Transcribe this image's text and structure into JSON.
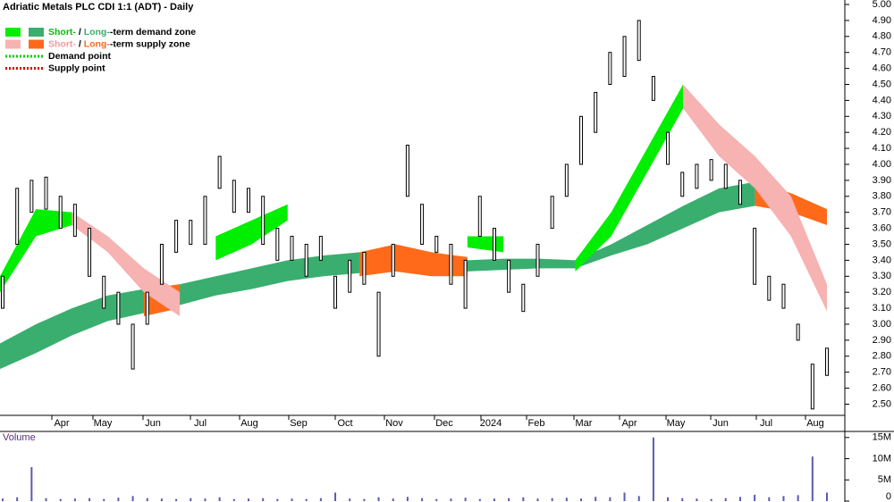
{
  "chart_data": [
    {
      "type": "hilo",
      "title": "Adriatic Metals PLC CDI 1:1 (ADT) - Daily",
      "color": "#000000",
      "ylim": [
        2.43,
        5.0
      ],
      "yticks": [
        {
          "value": 2.5,
          "label": "2.50"
        },
        {
          "value": 2.6,
          "label": "2.60"
        },
        {
          "value": 2.7,
          "label": "2.70"
        },
        {
          "value": 2.8,
          "label": "2.80"
        },
        {
          "value": 2.9,
          "label": "2.90"
        },
        {
          "value": 3.0,
          "label": "3.00"
        },
        {
          "value": 3.1,
          "label": "3.10"
        },
        {
          "value": 3.2,
          "label": "3.20"
        },
        {
          "value": 3.3,
          "label": "3.30"
        },
        {
          "value": 3.4,
          "label": "3.40"
        },
        {
          "value": 3.5,
          "label": "3.50"
        },
        {
          "value": 3.6,
          "label": "3.60"
        },
        {
          "value": 3.7,
          "label": "3.70"
        },
        {
          "value": 3.8,
          "label": "3.80"
        },
        {
          "value": 3.9,
          "label": "3.90"
        },
        {
          "value": 4.0,
          "label": "4.00"
        },
        {
          "value": 4.1,
          "label": "4.10"
        },
        {
          "value": 4.2,
          "label": "4.20"
        },
        {
          "value": 4.3,
          "label": "4.30"
        },
        {
          "value": 4.4,
          "label": "4.40"
        },
        {
          "value": 4.5,
          "label": "4.50"
        },
        {
          "value": 4.6,
          "label": "4.60"
        },
        {
          "value": 4.7,
          "label": "4.70"
        },
        {
          "value": 4.8,
          "label": "4.80"
        },
        {
          "value": 4.9,
          "label": "4.90"
        },
        {
          "value": 5.0,
          "label": "5.00"
        }
      ],
      "x_labels": [
        "Apr",
        "May",
        "Jun",
        "Jul",
        "Aug",
        "Sep",
        "Oct",
        "Nov",
        "Dec",
        "2024",
        "Feb",
        "Mar",
        "Apr",
        "May",
        "Jun",
        "Jul",
        "Aug"
      ],
      "low": [
        3.1,
        3.5,
        3.7,
        3.72,
        3.6,
        3.55,
        3.3,
        3.1,
        3.0,
        2.72,
        3.0,
        3.25,
        3.45,
        3.5,
        3.5,
        3.85,
        3.7,
        3.7,
        3.5,
        3.4,
        3.4,
        3.3,
        3.4,
        3.1,
        3.2,
        3.25,
        2.8,
        3.3,
        3.8,
        3.5,
        3.45,
        3.25,
        3.1,
        3.55,
        3.4,
        3.2,
        3.08,
        3.3,
        3.6,
        3.8,
        4.0,
        4.2,
        4.5,
        4.55,
        4.65,
        4.4,
        4.0,
        3.8,
        3.85,
        3.9,
        3.85,
        3.75,
        3.25,
        3.15,
        3.1,
        2.9,
        2.47,
        2.68
      ],
      "high": [
        3.3,
        3.85,
        3.9,
        3.92,
        3.8,
        3.75,
        3.6,
        3.3,
        3.2,
        3.0,
        3.2,
        3.5,
        3.65,
        3.65,
        3.8,
        4.05,
        3.9,
        3.85,
        3.8,
        3.6,
        3.55,
        3.5,
        3.55,
        3.3,
        3.4,
        3.45,
        3.2,
        3.5,
        4.12,
        3.75,
        3.55,
        3.5,
        3.4,
        3.8,
        3.6,
        3.4,
        3.25,
        3.5,
        3.8,
        4.0,
        4.3,
        4.45,
        4.7,
        4.8,
        4.9,
        4.55,
        4.2,
        3.95,
        4.0,
        4.03,
        4.0,
        3.9,
        3.6,
        3.3,
        3.25,
        3.0,
        2.75,
        2.85
      ],
      "zones": [
        {
          "color": "#3aae6f",
          "upper": [
            2.88,
            3.0,
            3.1,
            3.18,
            3.22,
            3.25,
            3.3,
            3.35,
            3.4,
            3.43,
            3.45,
            3.45,
            3.42,
            3.4,
            3.41,
            3.41,
            3.4,
            3.5,
            3.62,
            3.74,
            3.85,
            3.89,
            null,
            null
          ],
          "lower": [
            2.72,
            2.82,
            2.93,
            3.02,
            3.07,
            3.12,
            3.18,
            3.22,
            3.27,
            3.3,
            3.32,
            3.33,
            3.33,
            3.33,
            3.34,
            3.35,
            3.35,
            3.43,
            3.5,
            3.6,
            3.7,
            3.74,
            null,
            null
          ]
        },
        {
          "color": "#ff6a1a",
          "upper": [
            null,
            null,
            null,
            null,
            3.22,
            3.25,
            null,
            null,
            null,
            null,
            3.45,
            3.5,
            3.45,
            3.42,
            null,
            null,
            null,
            null,
            null,
            null,
            null,
            3.89,
            3.82,
            3.72
          ],
          "lower": [
            null,
            null,
            null,
            null,
            3.05,
            3.1,
            null,
            null,
            null,
            null,
            3.3,
            3.33,
            3.3,
            3.3,
            null,
            null,
            null,
            null,
            null,
            null,
            null,
            3.74,
            3.7,
            3.62
          ]
        },
        {
          "color": "#00ee00",
          "upper": [
            3.3,
            3.72,
            3.7,
            null,
            null,
            null,
            3.55,
            3.65,
            3.75,
            null,
            null,
            null,
            null,
            3.55,
            3.55,
            null,
            3.4,
            3.7,
            4.1,
            4.5,
            null,
            null,
            null,
            null
          ],
          "lower": [
            3.2,
            3.55,
            3.62,
            null,
            null,
            null,
            3.4,
            3.5,
            3.65,
            null,
            null,
            null,
            null,
            3.48,
            3.45,
            null,
            3.33,
            3.55,
            3.95,
            4.35,
            null,
            null,
            null,
            null
          ]
        },
        {
          "color": "#f7b2b2",
          "upper": [
            null,
            null,
            3.7,
            3.55,
            3.35,
            3.2,
            null,
            null,
            null,
            null,
            null,
            null,
            null,
            null,
            null,
            null,
            null,
            null,
            null,
            4.5,
            4.25,
            4.05,
            3.8,
            3.25
          ],
          "lower": [
            null,
            null,
            3.62,
            3.45,
            3.2,
            3.05,
            null,
            null,
            null,
            null,
            null,
            null,
            null,
            null,
            null,
            null,
            null,
            null,
            null,
            4.35,
            4.05,
            3.85,
            3.55,
            3.08
          ]
        }
      ],
      "legend": [
        {
          "swatches": [
            "#00ee00",
            "#3aae6f"
          ],
          "parts": [
            "Short-",
            " / ",
            "Long-",
            "-term demand zone"
          ],
          "part_colors": [
            "#00c000",
            "#000000",
            "#3aae6f",
            "#000000"
          ]
        },
        {
          "swatches": [
            "#f7b2b2",
            "#ff6a1a"
          ],
          "parts": [
            "Short-",
            " / ",
            "Long-",
            "-term supply zone"
          ],
          "part_colors": [
            "#f29a9a",
            "#000000",
            "#ff6a1a",
            "#000000"
          ]
        },
        {
          "dotted": "#00cc00",
          "parts": [
            "Demand point"
          ],
          "part_colors": [
            "#000000"
          ]
        },
        {
          "dotted": "#dd0000",
          "parts": [
            "Supply point"
          ],
          "part_colors": [
            "#000000"
          ]
        }
      ]
    },
    {
      "type": "bar",
      "title": "Volume",
      "color": "#5a5ab4",
      "ylim": [
        0,
        16000000
      ],
      "yticks": [
        0,
        {
          "value": 5000000,
          "label": "5M"
        },
        {
          "value": 10000000,
          "label": "10M"
        },
        {
          "value": 15000000,
          "label": "15M"
        }
      ],
      "values": [
        600000,
        900000,
        8000000,
        700000,
        500000,
        600000,
        700000,
        500000,
        800000,
        1200000,
        700000,
        600000,
        500000,
        700000,
        600000,
        900000,
        500000,
        600000,
        700000,
        500000,
        600000,
        500000,
        700000,
        2000000,
        600000,
        500000,
        900000,
        600000,
        1000000,
        700000,
        500000,
        600000,
        800000,
        500000,
        600000,
        700000,
        900000,
        600000,
        700000,
        800000,
        600000,
        1000000,
        900000,
        2000000,
        1200000,
        15000000,
        900000,
        700000,
        600000,
        500000,
        700000,
        1000000,
        1500000,
        900000,
        1200000,
        1400000,
        10500000,
        2000000
      ]
    }
  ]
}
